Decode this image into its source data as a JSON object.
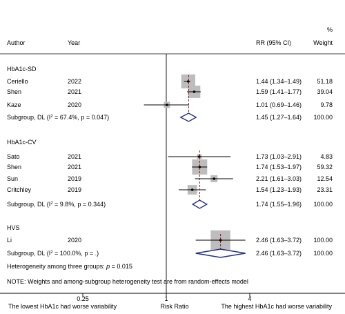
{
  "chart_data": {
    "type": "forest",
    "x_scale": "log",
    "xlim": [
      0.2,
      5.2
    ],
    "null_value": 1,
    "x_ticks": [
      "0.25",
      "1",
      "4"
    ],
    "x_tick_values": [
      0.25,
      1,
      4
    ],
    "xlabel": "Risk Ratio",
    "x_left_label": "The lowest HbA1c had worse variability",
    "x_right_label": "The highest HbA1c had worse variability",
    "headers": {
      "author": "Author",
      "year": "Year",
      "rr": "RR (95% CI)",
      "weight_pct": "%",
      "weight": "Weight"
    },
    "groups": [
      {
        "name": "HbA1c-SD",
        "studies": [
          {
            "author": "Ceriello",
            "year": "2022",
            "rr": 1.44,
            "lo": 1.34,
            "hi": 1.49,
            "ci_text": "1.44 (1.34–1.49)",
            "weight": 51.18,
            "weight_text": "51.18"
          },
          {
            "author": "Shen",
            "year": "2021",
            "rr": 1.59,
            "lo": 1.41,
            "hi": 1.77,
            "ci_text": "1.59 (1.41–1.77)",
            "weight": 39.04,
            "weight_text": "39.04"
          },
          {
            "author": "Kaze",
            "year": "2020",
            "rr": 1.01,
            "lo": 0.69,
            "hi": 1.46,
            "ci_text": "1.01 (0.69–1.46)",
            "weight": 9.78,
            "weight_text": "9.78"
          }
        ],
        "subgroup": {
          "label_pre": "Subgroup, DL (I",
          "label_post": " = 67.4%, p = 0.047)",
          "rr": 1.45,
          "lo": 1.27,
          "hi": 1.64,
          "ci_text": "1.45 (1.27–1.64)",
          "weight_text": "100.00"
        }
      },
      {
        "name": "HbA1c-CV",
        "studies": [
          {
            "author": "Sato",
            "year": "2021",
            "rr": 1.73,
            "lo": 1.03,
            "hi": 2.91,
            "ci_text": "1.73 (1.03–2.91)",
            "weight": 4.83,
            "weight_text": "4.83"
          },
          {
            "author": "Shen",
            "year": "2021",
            "rr": 1.74,
            "lo": 1.53,
            "hi": 1.97,
            "ci_text": "1.74 (1.53–1.97)",
            "weight": 59.32,
            "weight_text": "59.32"
          },
          {
            "author": "Sun",
            "year": "2019",
            "rr": 2.21,
            "lo": 1.61,
            "hi": 3.03,
            "ci_text": "2.21 (1.61–3.03)",
            "weight": 12.54,
            "weight_text": "12.54"
          },
          {
            "author": "Critchley",
            "year": "2019",
            "rr": 1.54,
            "lo": 1.23,
            "hi": 1.93,
            "ci_text": "1.54 (1.23–1.93)",
            "weight": 23.31,
            "weight_text": "23.31"
          }
        ],
        "subgroup": {
          "label_pre": "Subgroup, DL (I",
          "label_post": " = 9.8%, p = 0.344)",
          "rr": 1.74,
          "lo": 1.55,
          "hi": 1.96,
          "ci_text": "1.74 (1.55–1.96)",
          "weight_text": "100.00"
        }
      },
      {
        "name": "HVS",
        "studies": [
          {
            "author": "Li",
            "year": "2020",
            "rr": 2.46,
            "lo": 1.63,
            "hi": 3.72,
            "ci_text": "2.46 (1.63–3.72)",
            "weight": 100.0,
            "weight_text": "100.00"
          }
        ],
        "subgroup": {
          "label_pre": "Subgroup, DL (I",
          "label_post": " = 100.0%, p = .)",
          "rr": 2.46,
          "lo": 1.63,
          "hi": 3.72,
          "ci_text": "2.46 (1.63–3.72)",
          "weight_text": "100.00"
        }
      }
    ],
    "heterogeneity_text": "Heterogeneity among three groups: ",
    "heterogeneity_p_label": "p",
    "heterogeneity_p_value": " = 0.015",
    "note": "NOTE: Weights and among-subgroup heterogeneity test are from random-effects model",
    "colors": {
      "box": "#bdbdbd",
      "diamond": "#1f2e8c",
      "subgroup_line": "#8b1a1a",
      "ink": "#000000"
    }
  }
}
